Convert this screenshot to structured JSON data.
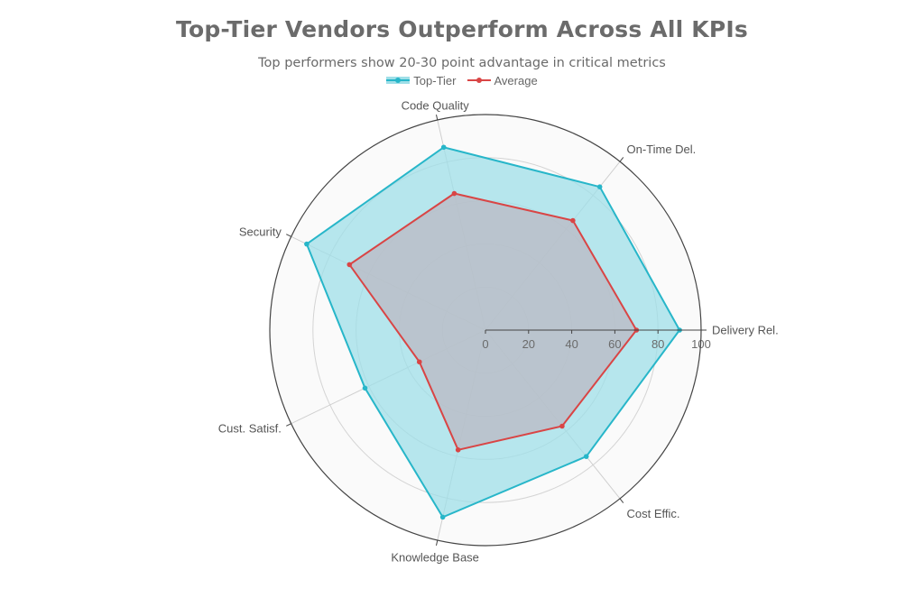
{
  "chart_data": {
    "type": "radar",
    "title": "Top-Tier Vendors Outperform Across All KPIs",
    "subtitle": "Top performers show 20-30 point advantage in critical metrics",
    "axes": [
      "Delivery Rel.",
      "On-Time Del.",
      "Code Quality",
      "Security",
      "Cust. Satisf.",
      "Knowledge Base",
      "Cost Effic."
    ],
    "range": [
      0,
      100
    ],
    "tick_labels": [
      "0",
      "20",
      "40",
      "60",
      "80",
      "100"
    ],
    "series": [
      {
        "name": "Top-Tier",
        "values": [
          90,
          85,
          87,
          92,
          62,
          89,
          75
        ],
        "color": "#27b6c9",
        "fill": "#9fdfe8"
      },
      {
        "name": "Average",
        "values": [
          70,
          65,
          65,
          70,
          34,
          57,
          57
        ],
        "color": "#d94545",
        "fill": "#bcbcc6"
      }
    ],
    "legend_position": "top-center",
    "grid": true
  }
}
